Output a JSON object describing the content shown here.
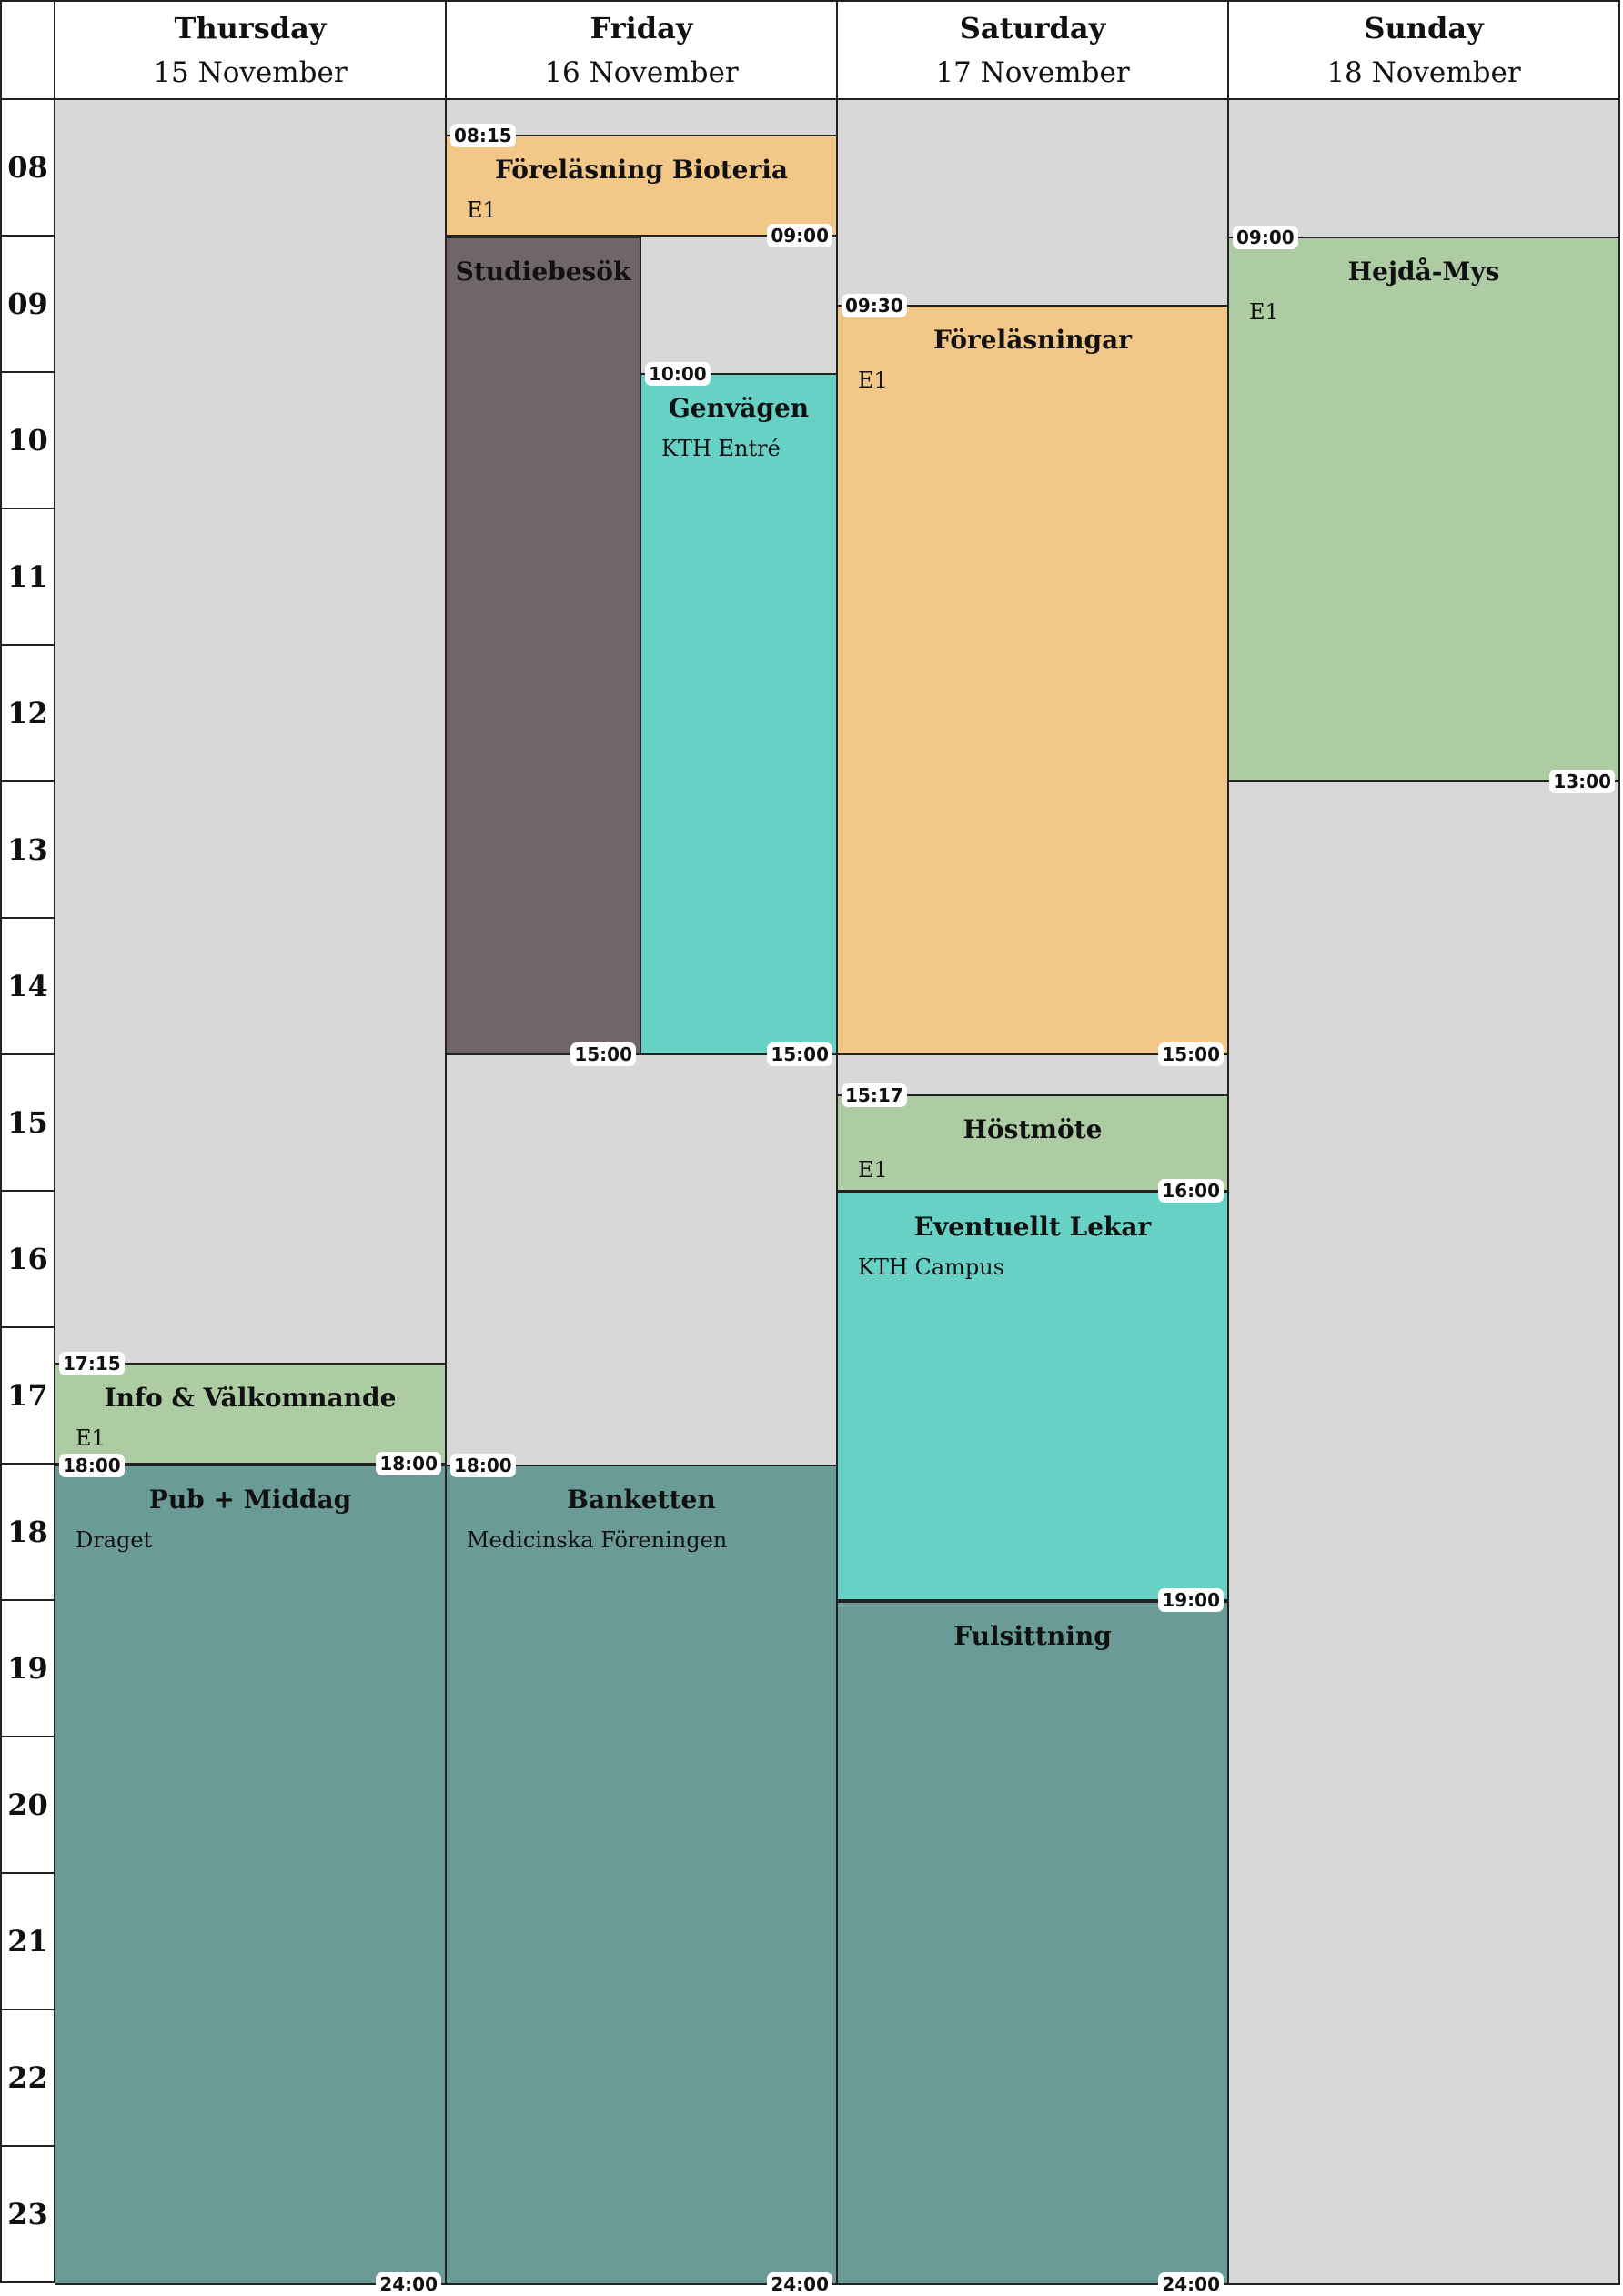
{
  "hours": [
    "08",
    "09",
    "10",
    "11",
    "12",
    "13",
    "14",
    "15",
    "16",
    "17",
    "18",
    "19",
    "20",
    "21",
    "22",
    "23"
  ],
  "days": [
    {
      "name": "Thursday",
      "date": "15 November",
      "events": [
        {
          "title": "Info & Välkomnande",
          "location": "E1",
          "start": "17:15",
          "end": "18:00",
          "color": "#adcca3"
        },
        {
          "title": "Pub + Middag",
          "location": "Draget",
          "start": "18:00",
          "end": "24:00",
          "color": "#6b9b97"
        }
      ]
    },
    {
      "name": "Friday",
      "date": "16 November",
      "events": [
        {
          "title": "Föreläsning Bioteria",
          "location": "E1",
          "start": "08:15",
          "end": "09:00",
          "color": "#f3c787"
        },
        {
          "title": "Studiebesök",
          "location": "",
          "start": "09:00",
          "end": "15:00",
          "color": "#706568",
          "lane": 0,
          "lanes": 2,
          "hideStart": true
        },
        {
          "title": "Genvägen",
          "location": "KTH Entré",
          "start": "10:00",
          "end": "15:00",
          "color": "#67d1c5",
          "lane": 1,
          "lanes": 2
        },
        {
          "title": "Banketten",
          "location": "Medicinska Föreningen",
          "start": "18:00",
          "end": "24:00",
          "color": "#6b9b97"
        }
      ]
    },
    {
      "name": "Saturday",
      "date": "17 November",
      "events": [
        {
          "title": "Föreläsningar",
          "location": "E1",
          "start": "09:30",
          "end": "15:00",
          "color": "#f3c787"
        },
        {
          "title": "Höstmöte",
          "location": "E1",
          "start": "15:17",
          "end": "16:00",
          "color": "#adcca3"
        },
        {
          "title": "Eventuellt Lekar",
          "location": "KTH Campus",
          "start": "16:00",
          "end": "19:00",
          "color": "#67d1c5",
          "hideStart": true
        },
        {
          "title": "Fulsittning",
          "location": "",
          "start": "19:00",
          "end": "24:00",
          "color": "#6b9b97",
          "hideStart": true
        }
      ]
    },
    {
      "name": "Sunday",
      "date": "18 November",
      "events": [
        {
          "title": "Hejdå-Mys",
          "location": "E1",
          "start": "09:00",
          "end": "13:00",
          "color": "#adcca3"
        }
      ]
    }
  ]
}
